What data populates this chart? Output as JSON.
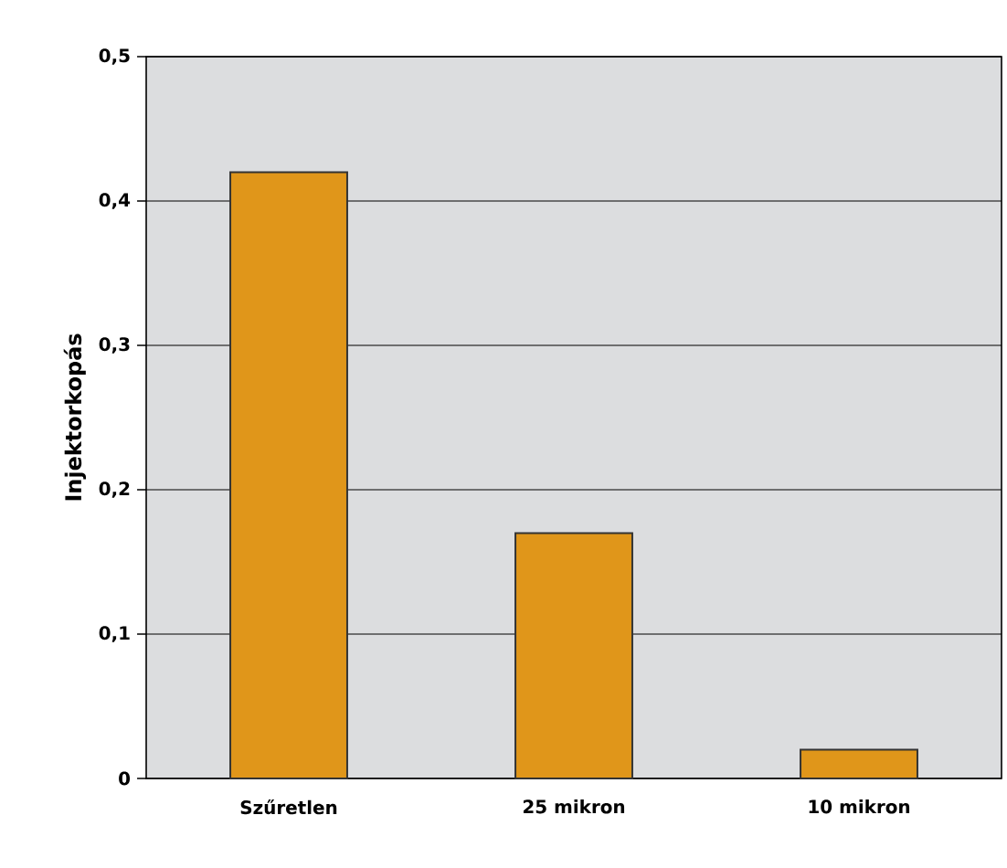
{
  "chart_data": {
    "type": "bar",
    "ylabel": "Injektorkopás",
    "categories": [
      "Szűretlen",
      "25 mikron",
      "10 mikron"
    ],
    "values": [
      0.42,
      0.17,
      0.02
    ],
    "color": "#e0961a",
    "ylim": [
      0,
      0.5
    ],
    "yticks": [
      {
        "value": 0,
        "label": "0"
      },
      {
        "value": 0.1,
        "label": "0,1"
      },
      {
        "value": 0.2,
        "label": "0,2"
      },
      {
        "value": 0.3,
        "label": "0,3"
      },
      {
        "value": 0.4,
        "label": "0,4"
      },
      {
        "value": 0.5,
        "label": "0,5"
      }
    ],
    "grid": "y"
  }
}
